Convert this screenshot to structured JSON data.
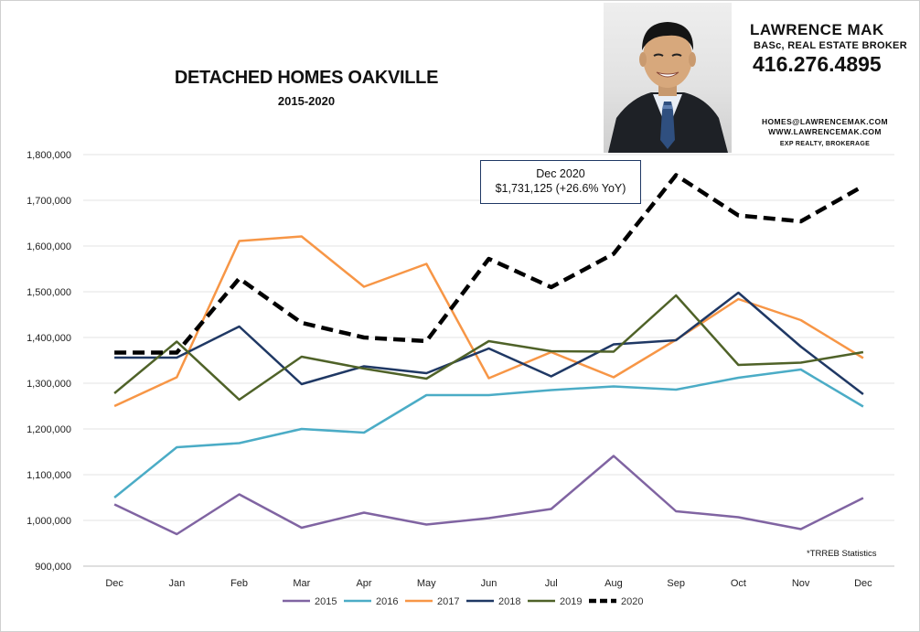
{
  "title": "DETACHED HOMES OAKVILLE",
  "subtitle": "2015-2020",
  "branding": {
    "name": "LAWRENCE MAK",
    "credentials": "BASc, REAL ESTATE BROKER",
    "phone": "416.276.4895",
    "email": "HOMES@LAWRENCEMAK.COM",
    "website": "WWW.LAWRENCEMAK.COM",
    "brokerage": "EXP REALTY, BROKERAGE"
  },
  "callout": {
    "line1": "Dec 2020",
    "line2": "$1,731,125  (+26.6% YoY)"
  },
  "source_note": "*TRREB Statistics",
  "chart_data": {
    "type": "line",
    "title": "DETACHED HOMES OAKVILLE",
    "subtitle": "2015-2020",
    "xlabel": "",
    "ylabel": "",
    "categories": [
      "Dec",
      "Jan",
      "Feb",
      "Mar",
      "Apr",
      "May",
      "Jun",
      "Jul",
      "Aug",
      "Sep",
      "Oct",
      "Nov",
      "Dec"
    ],
    "ylim": [
      900000,
      1800000
    ],
    "yticks": [
      900000,
      1000000,
      1100000,
      1200000,
      1300000,
      1400000,
      1500000,
      1600000,
      1700000,
      1800000
    ],
    "ytick_labels": [
      "900,000",
      "1,000,000",
      "1,100,000",
      "1,200,000",
      "1,300,000",
      "1,400,000",
      "1,500,000",
      "1,600,000",
      "1,700,000",
      "1,800,000"
    ],
    "grid": "horizontal",
    "legend_position": "bottom",
    "series": [
      {
        "name": "2015",
        "color": "#8064a2",
        "dashed": false,
        "values": [
          1035000,
          970000,
          1057000,
          984000,
          1017000,
          991000,
          1005000,
          1025000,
          1141000,
          1020000,
          1007000,
          981000,
          1049000
        ]
      },
      {
        "name": "2016",
        "color": "#4bacc6",
        "dashed": false,
        "values": [
          1050000,
          1160000,
          1169000,
          1200000,
          1192000,
          1274000,
          1274000,
          1285000,
          1293000,
          1286000,
          1312000,
          1330000,
          1249000
        ]
      },
      {
        "name": "2017",
        "color": "#f79646",
        "dashed": false,
        "values": [
          1250000,
          1313000,
          1611000,
          1621000,
          1511000,
          1561000,
          1311000,
          1368000,
          1313000,
          1395000,
          1484000,
          1438000,
          1355000
        ]
      },
      {
        "name": "2018",
        "color": "#1f3864",
        "dashed": false,
        "values": [
          1356000,
          1356000,
          1424000,
          1298000,
          1337000,
          1322000,
          1376000,
          1315000,
          1385000,
          1394000,
          1498000,
          1380000,
          1276000
        ]
      },
      {
        "name": "2019",
        "color": "#4f6228",
        "dashed": false,
        "values": [
          1278000,
          1391000,
          1264000,
          1358000,
          1332000,
          1310000,
          1392000,
          1370000,
          1369000,
          1492000,
          1340000,
          1345000,
          1368000
        ]
      },
      {
        "name": "2020",
        "color": "#000000",
        "dashed": true,
        "values": [
          1367000,
          1367000,
          1529000,
          1432000,
          1400000,
          1392000,
          1572000,
          1510000,
          1583000,
          1755000,
          1667000,
          1654000,
          1731125
        ]
      }
    ]
  }
}
